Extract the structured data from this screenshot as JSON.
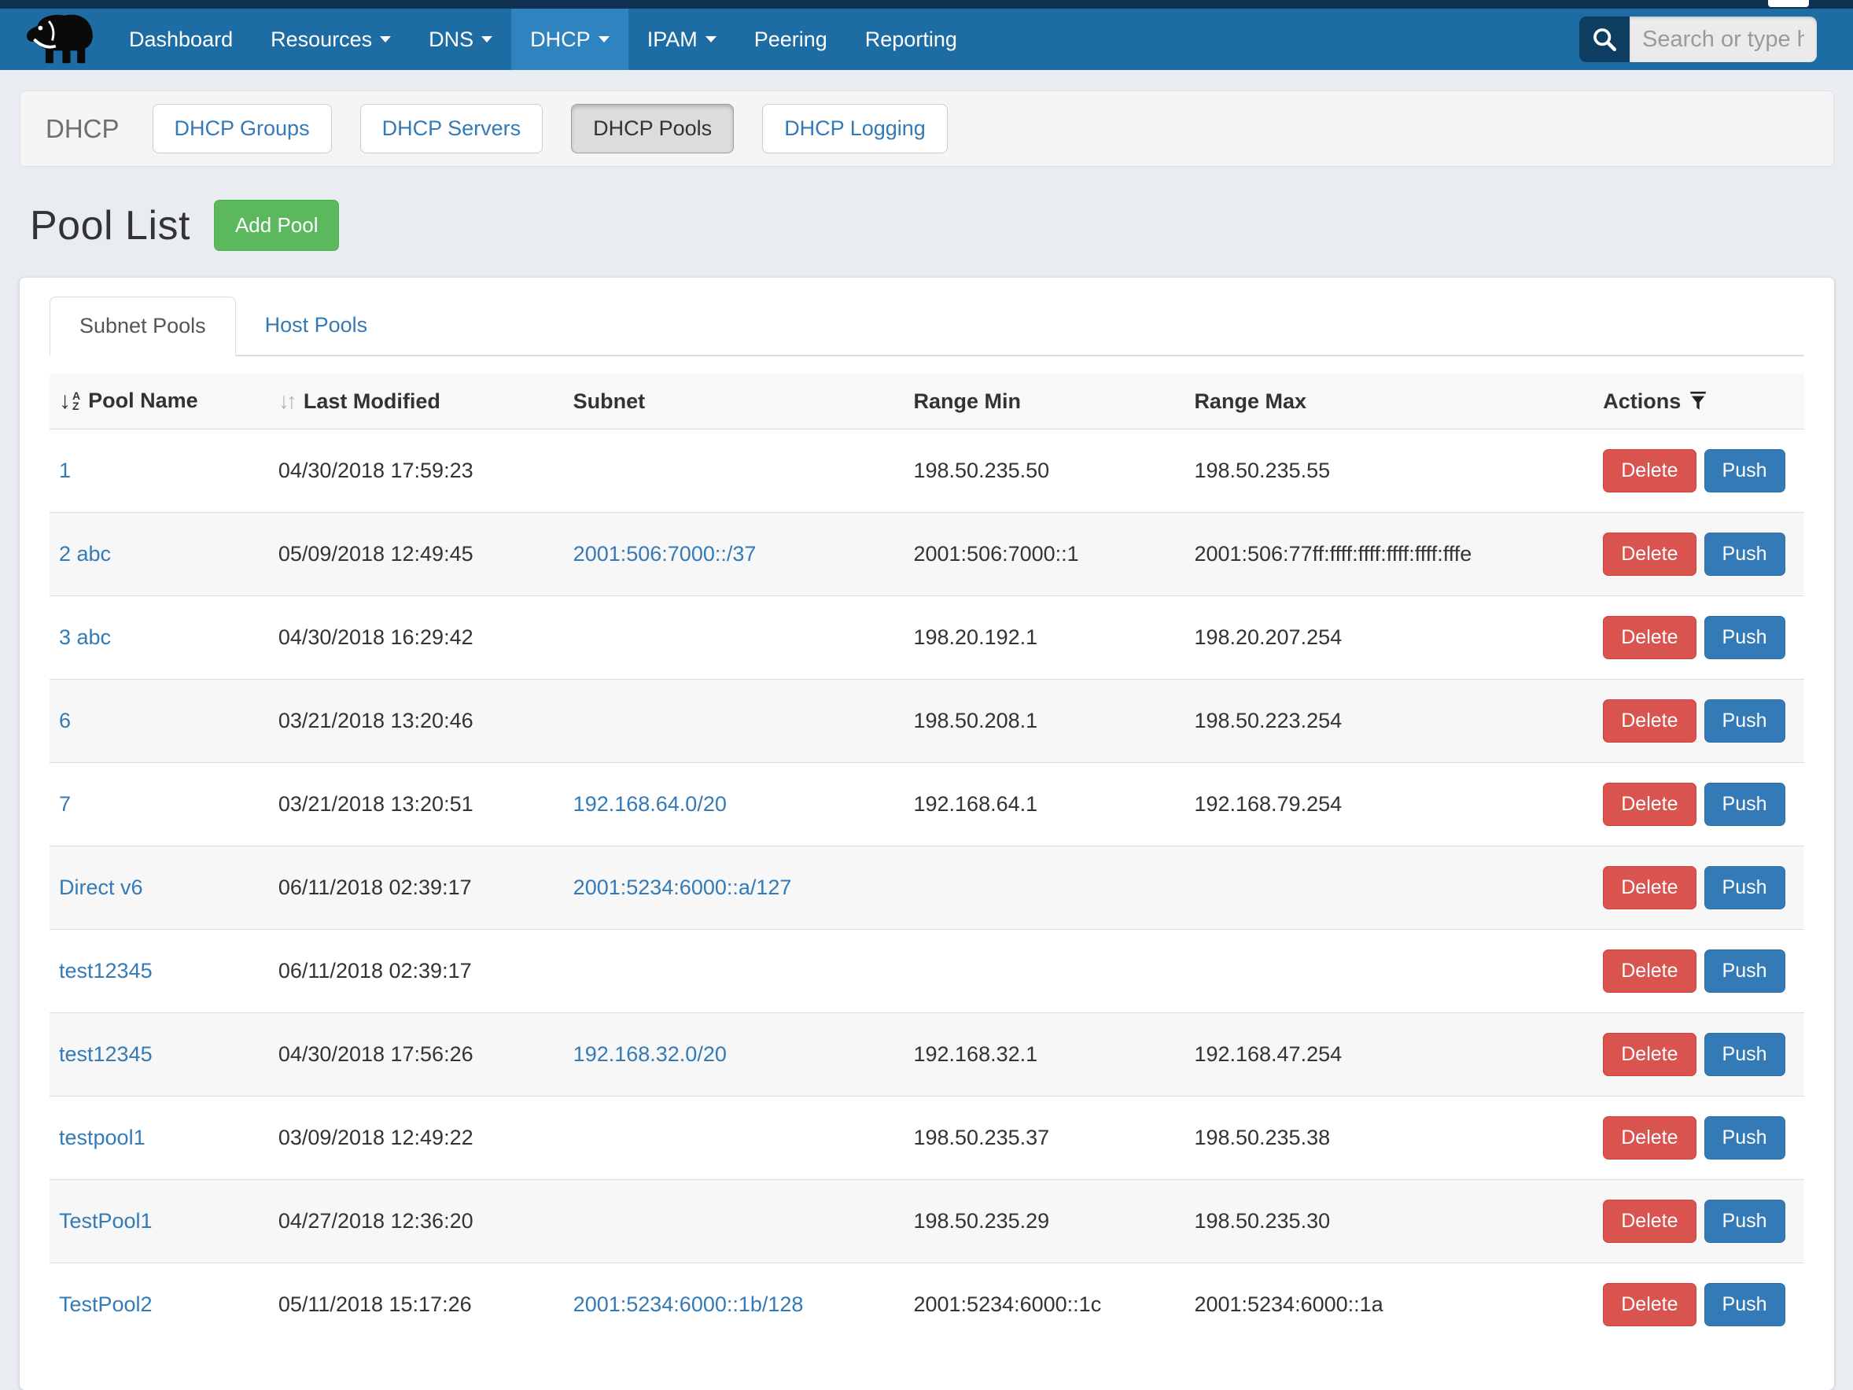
{
  "colors": {
    "page-bg": "#e9edf2",
    "strip": "#0e3152",
    "nav-bg": "#1d6ca3",
    "nav-active": "#2f83bf",
    "search-icon-bg": "#0d3d61",
    "accent": "#337ab7",
    "green": "#5cb85c",
    "red": "#d9534f"
  },
  "icons": {
    "logo": "mammoth-logo",
    "search": "search-icon (magnifier)",
    "caret": "caret-down-icon",
    "pool_name_sort": "sort-alpha-asc-icon",
    "last_modified_sort": "sort-updown-icon",
    "actions_filter": "filter-funnel-icon"
  },
  "nav": {
    "items": [
      {
        "label": "Dashboard",
        "caret": false,
        "active": false
      },
      {
        "label": "Resources",
        "caret": true,
        "active": false
      },
      {
        "label": "DNS",
        "caret": true,
        "active": false
      },
      {
        "label": "DHCP",
        "caret": true,
        "active": true
      },
      {
        "label": "IPAM",
        "caret": true,
        "active": false
      },
      {
        "label": "Peering",
        "caret": false,
        "active": false
      },
      {
        "label": "Reporting",
        "caret": false,
        "active": false
      }
    ],
    "search_placeholder": "Search or type help"
  },
  "section": {
    "title": "DHCP",
    "buttons": [
      {
        "label": "DHCP Groups",
        "active": false
      },
      {
        "label": "DHCP Servers",
        "active": false
      },
      {
        "label": "DHCP Pools",
        "active": true
      },
      {
        "label": "DHCP Logging",
        "active": false
      }
    ]
  },
  "page": {
    "title": "Pool List",
    "add_button": "Add Pool"
  },
  "tabs": [
    {
      "label": "Subnet Pools",
      "active": true
    },
    {
      "label": "Host Pools",
      "active": false
    }
  ],
  "table": {
    "columns": [
      "Pool Name",
      "Last Modified",
      "Subnet",
      "Range Min",
      "Range Max",
      "Actions"
    ],
    "actions": {
      "delete_label": "Delete",
      "push_label": "Push"
    },
    "rows": [
      {
        "name": "1",
        "modified": "04/30/2018 17:59:23",
        "subnet": "",
        "range_min": "198.50.235.50",
        "range_max": "198.50.235.55"
      },
      {
        "name": "2 abc",
        "modified": "05/09/2018 12:49:45",
        "subnet": "2001:506:7000::/37",
        "range_min": "2001:506:7000::1",
        "range_max": "2001:506:77ff:ffff:ffff:ffff:ffff:fffe"
      },
      {
        "name": "3 abc",
        "modified": "04/30/2018 16:29:42",
        "subnet": "",
        "range_min": "198.20.192.1",
        "range_max": "198.20.207.254"
      },
      {
        "name": "6",
        "modified": "03/21/2018 13:20:46",
        "subnet": "",
        "range_min": "198.50.208.1",
        "range_max": "198.50.223.254"
      },
      {
        "name": "7",
        "modified": "03/21/2018 13:20:51",
        "subnet": "192.168.64.0/20",
        "range_min": "192.168.64.1",
        "range_max": "192.168.79.254"
      },
      {
        "name": "Direct v6",
        "modified": "06/11/2018 02:39:17",
        "subnet": "2001:5234:6000::a/127",
        "range_min": "",
        "range_max": ""
      },
      {
        "name": "test12345",
        "modified": "06/11/2018 02:39:17",
        "subnet": "",
        "range_min": "",
        "range_max": ""
      },
      {
        "name": "test12345",
        "modified": "04/30/2018 17:56:26",
        "subnet": "192.168.32.0/20",
        "range_min": "192.168.32.1",
        "range_max": "192.168.47.254"
      },
      {
        "name": "testpool1",
        "modified": "03/09/2018 12:49:22",
        "subnet": "",
        "range_min": "198.50.235.37",
        "range_max": "198.50.235.38"
      },
      {
        "name": "TestPool1",
        "modified": "04/27/2018 12:36:20",
        "subnet": "",
        "range_min": "198.50.235.29",
        "range_max": "198.50.235.30"
      },
      {
        "name": "TestPool2",
        "modified": "05/11/2018 15:17:26",
        "subnet": "2001:5234:6000::1b/128",
        "range_min": "2001:5234:6000::1c",
        "range_max": "2001:5234:6000::1a"
      }
    ]
  }
}
